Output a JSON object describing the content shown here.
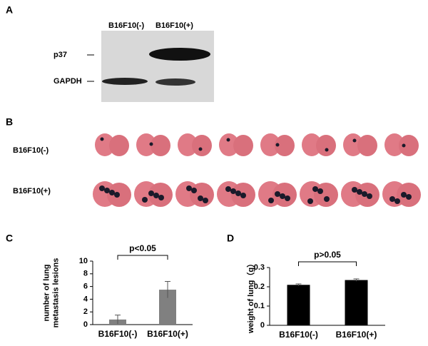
{
  "panels": {
    "a": "A",
    "b": "B",
    "c": "C",
    "d": "D"
  },
  "blot": {
    "lanes": [
      "B16F10(-)",
      "B16F10(+)"
    ],
    "bands": [
      "p37",
      "GAPDH"
    ]
  },
  "lungs": {
    "rows": [
      "B16F10(-)",
      "B16F10(+)"
    ]
  },
  "chart_data": [
    {
      "type": "bar",
      "ylabel": [
        "number of lung",
        "metastasis lesions"
      ],
      "annotation": "p<0.05",
      "categories": [
        "B16F10(-)",
        "B16F10(+)"
      ],
      "values": [
        0.8,
        5.5
      ],
      "errors": [
        0.7,
        1.3
      ],
      "color": "#808080",
      "ylim": [
        0,
        10
      ],
      "yticks": [
        0,
        2,
        4,
        6,
        8,
        10
      ]
    },
    {
      "type": "bar",
      "ylabel": [
        "weight of lung（g）"
      ],
      "annotation": "p>0.05",
      "categories": [
        "B16F10(-)",
        "B16F10(+)"
      ],
      "values": [
        0.21,
        0.235
      ],
      "errors": [
        0.005,
        0.006
      ],
      "color": "#000000",
      "ylim": [
        0,
        0.3
      ],
      "yticks": [
        0,
        0.1,
        0.2,
        0.3
      ]
    }
  ]
}
